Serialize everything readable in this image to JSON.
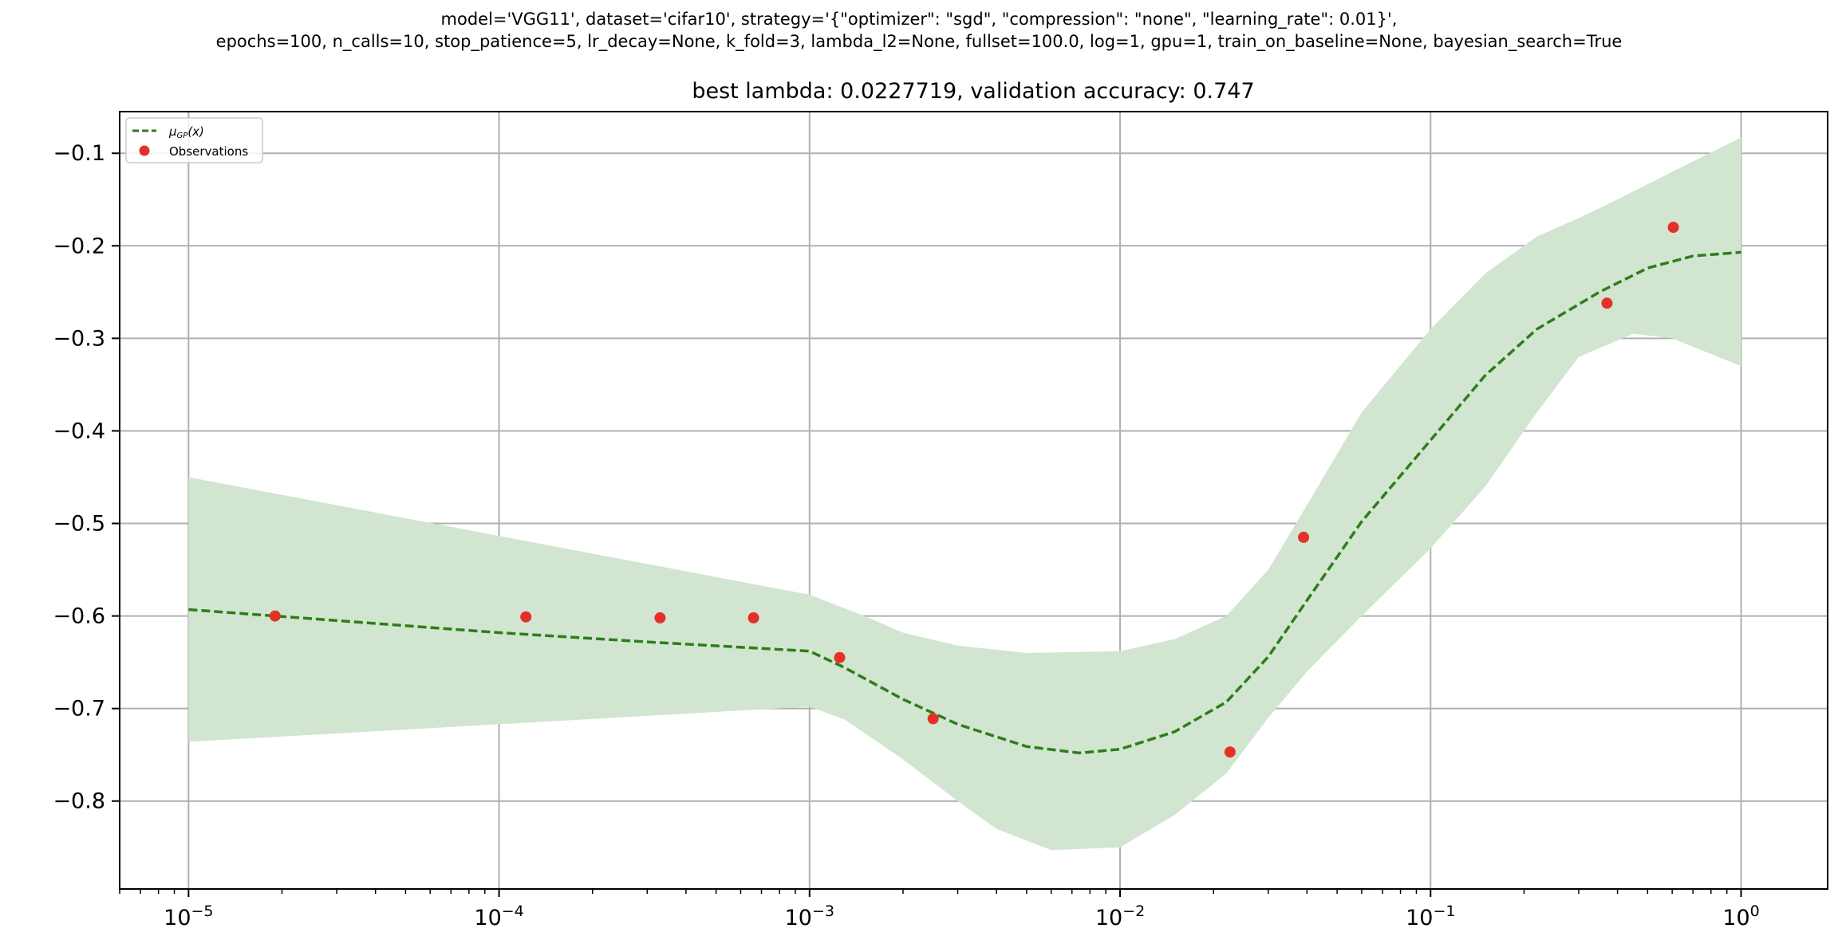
{
  "figure": {
    "suptitle_line1": "model='VGG11', dataset='cifar10', strategy='{\"optimizer\": \"sgd\", \"compression\": \"none\", \"learning_rate\": 0.01}',",
    "suptitle_line2": "epochs=100, n_calls=10, stop_patience=5, lr_decay=None, k_fold=3, lambda_l2=None, fullset=100.0, log=1, gpu=1, train_on_baseline=None, bayesian_search=True"
  },
  "chart_data": {
    "type": "line",
    "title": "best lambda: 0.0227719, validation accuracy: 0.747",
    "xlabel": "",
    "ylabel": "",
    "xscale": "log",
    "xlim": [
      6e-06,
      1.9
    ],
    "ylim": [
      -0.895,
      -0.055
    ],
    "x_ticks": [
      {
        "value": 1e-05,
        "base": "10",
        "exp": "−5"
      },
      {
        "value": 0.0001,
        "base": "10",
        "exp": "−4"
      },
      {
        "value": 0.001,
        "base": "10",
        "exp": "−3"
      },
      {
        "value": 0.01,
        "base": "10",
        "exp": "−2"
      },
      {
        "value": 0.1,
        "base": "10",
        "exp": "−1"
      },
      {
        "value": 1,
        "base": "10",
        "exp": "0"
      }
    ],
    "y_ticks": [
      {
        "value": -0.1,
        "label": "−0.1"
      },
      {
        "value": -0.2,
        "label": "−0.2"
      },
      {
        "value": -0.3,
        "label": "−0.3"
      },
      {
        "value": -0.4,
        "label": "−0.4"
      },
      {
        "value": -0.5,
        "label": "−0.5"
      },
      {
        "value": -0.6,
        "label": "−0.6"
      },
      {
        "value": -0.7,
        "label": "−0.7"
      },
      {
        "value": -0.8,
        "label": "−0.8"
      }
    ],
    "grid": true,
    "legend": {
      "position": "top-left",
      "entries": [
        {
          "label_main": "μ",
          "label_sub": "GP",
          "label_tail": "(x)",
          "marker": "dashed-line",
          "color": "#2e7d1a"
        },
        {
          "label_main": "Observations",
          "label_sub": "",
          "label_tail": "",
          "marker": "circle",
          "color": "#e3312a"
        }
      ]
    },
    "colors": {
      "mean_line": "#2e7d1a",
      "confidence_band": "#d1e5d0",
      "observations": "#e3312a",
      "grid": "#b0b0b0"
    },
    "series": [
      {
        "name": "μGP(x)",
        "kind": "dashed-line",
        "points": [
          [
            1e-05,
            -0.593
          ],
          [
            1.9e-05,
            -0.6
          ],
          [
            0.0001,
            -0.618
          ],
          [
            0.0003,
            -0.628
          ],
          [
            0.001,
            -0.638
          ],
          [
            0.0013,
            -0.656
          ],
          [
            0.002,
            -0.69
          ],
          [
            0.003,
            -0.717
          ],
          [
            0.005,
            -0.741
          ],
          [
            0.0074,
            -0.748
          ],
          [
            0.01,
            -0.744
          ],
          [
            0.015,
            -0.725
          ],
          [
            0.022,
            -0.693
          ],
          [
            0.03,
            -0.644
          ],
          [
            0.04,
            -0.583
          ],
          [
            0.06,
            -0.498
          ],
          [
            0.1,
            -0.41
          ],
          [
            0.15,
            -0.34
          ],
          [
            0.22,
            -0.29
          ],
          [
            0.35,
            -0.25
          ],
          [
            0.5,
            -0.224
          ],
          [
            0.7,
            -0.211
          ],
          [
            1,
            -0.207
          ]
        ]
      },
      {
        "name": "confidence interval",
        "kind": "band",
        "upper": [
          [
            1e-05,
            -0.45
          ],
          [
            0.001,
            -0.577
          ],
          [
            0.0015,
            -0.6
          ],
          [
            0.002,
            -0.618
          ],
          [
            0.003,
            -0.632
          ],
          [
            0.005,
            -0.64
          ],
          [
            0.01,
            -0.638
          ],
          [
            0.015,
            -0.625
          ],
          [
            0.022,
            -0.6
          ],
          [
            0.03,
            -0.55
          ],
          [
            0.04,
            -0.48
          ],
          [
            0.06,
            -0.38
          ],
          [
            0.1,
            -0.29
          ],
          [
            0.15,
            -0.23
          ],
          [
            0.22,
            -0.19
          ],
          [
            0.3,
            -0.17
          ],
          [
            0.4,
            -0.15
          ],
          [
            0.6,
            -0.12
          ],
          [
            1,
            -0.083
          ]
        ],
        "lower": [
          [
            1e-05,
            -0.736
          ],
          [
            0.001,
            -0.698
          ],
          [
            0.0013,
            -0.712
          ],
          [
            0.002,
            -0.755
          ],
          [
            0.003,
            -0.8
          ],
          [
            0.004,
            -0.83
          ],
          [
            0.006,
            -0.853
          ],
          [
            0.01,
            -0.85
          ],
          [
            0.015,
            -0.815
          ],
          [
            0.022,
            -0.77
          ],
          [
            0.03,
            -0.71
          ],
          [
            0.04,
            -0.66
          ],
          [
            0.06,
            -0.6
          ],
          [
            0.1,
            -0.527
          ],
          [
            0.15,
            -0.46
          ],
          [
            0.22,
            -0.38
          ],
          [
            0.3,
            -0.32
          ],
          [
            0.45,
            -0.295
          ],
          [
            0.6,
            -0.3
          ],
          [
            1,
            -0.33
          ]
        ]
      },
      {
        "name": "Observations",
        "kind": "scatter",
        "points": [
          [
            1.9e-05,
            -0.6
          ],
          [
            0.000122,
            -0.601
          ],
          [
            0.00033,
            -0.602
          ],
          [
            0.00066,
            -0.602
          ],
          [
            0.00125,
            -0.645
          ],
          [
            0.0025,
            -0.711
          ],
          [
            0.0226,
            -0.747
          ],
          [
            0.039,
            -0.515
          ],
          [
            0.37,
            -0.262
          ],
          [
            0.605,
            -0.18
          ]
        ]
      }
    ]
  }
}
